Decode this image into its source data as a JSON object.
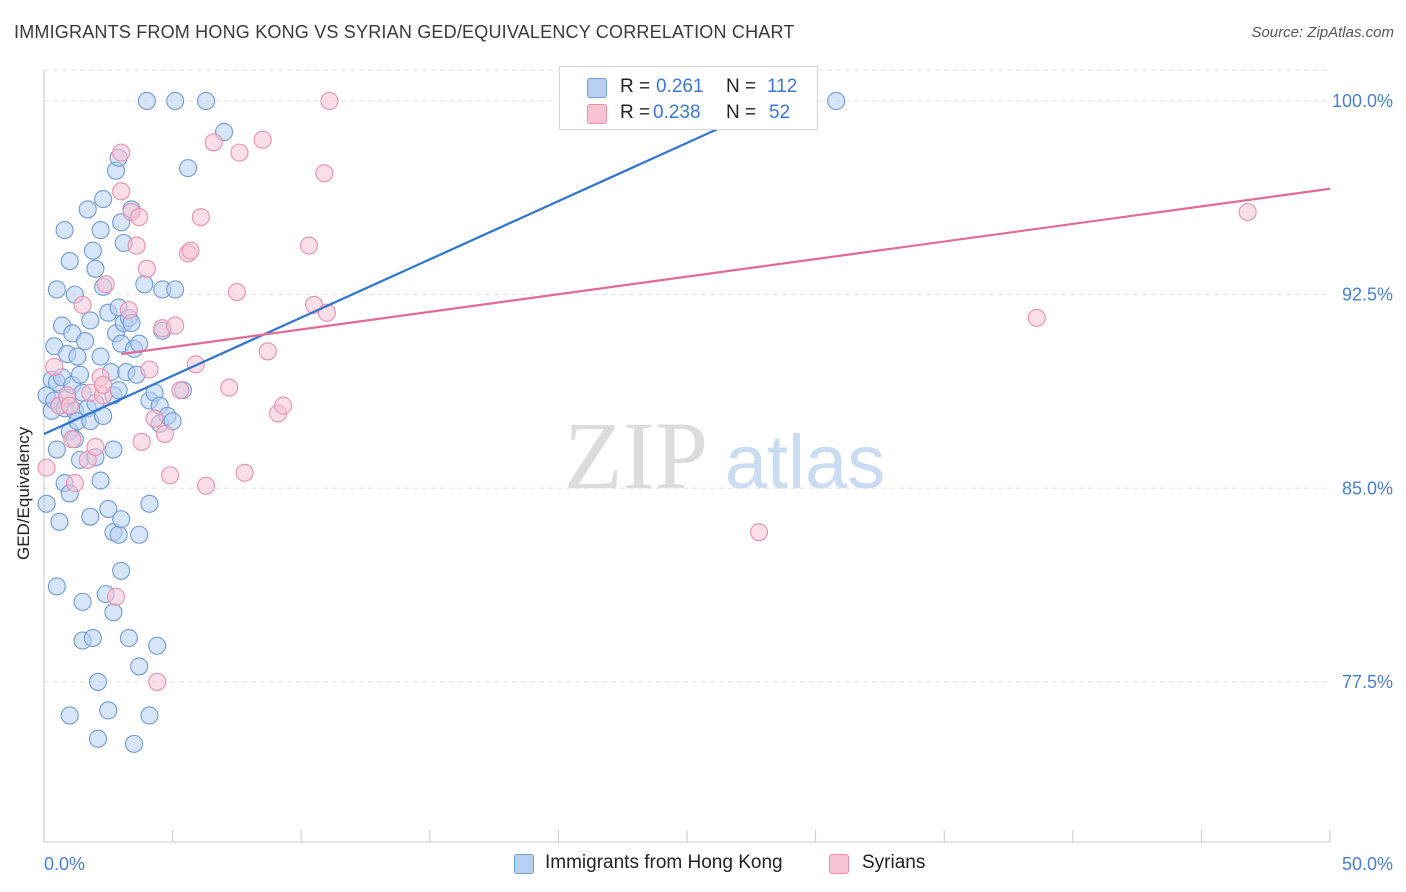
{
  "title": "IMMIGRANTS FROM HONG KONG VS SYRIAN GED/EQUIVALENCY CORRELATION CHART",
  "source": "Source: ZipAtlas.com",
  "watermark": {
    "zip": "ZIP",
    "atlas": "atlas"
  },
  "colors": {
    "blue_fill": "#b7d0f2",
    "blue_stroke": "#6f9ad6",
    "blue_line": "#2f74cf",
    "pink_fill": "#f7c3d3",
    "pink_stroke": "#e990ae",
    "pink_line": "#e36a96",
    "tick_text": "#4a7fd0",
    "grid": "#e2e2e2"
  },
  "legend": {
    "rows": [
      {
        "r_label": "R =",
        "r_value": "0.261",
        "n_label": "N =",
        "n_value": "112"
      },
      {
        "r_label": "R =",
        "r_value": "0.238",
        "n_label": "N =",
        "n_value": "52"
      }
    ]
  },
  "chart_data": {
    "type": "scatter",
    "title": "IMMIGRANTS FROM HONG KONG VS SYRIAN GED/EQUIVALENCY CORRELATION CHART",
    "xlabel": "",
    "ylabel": "GED/Equivalency",
    "xlim": [
      0,
      50
    ],
    "ylim": [
      71.3,
      101.2
    ],
    "x_tick_labels": [
      "0.0%",
      "50.0%"
    ],
    "y_ticks": [
      77.5,
      85.0,
      92.5,
      100.0
    ],
    "y_tick_labels": [
      "77.5%",
      "85.0%",
      "92.5%",
      "100.0%"
    ],
    "grid": true,
    "legend_position": "top-center",
    "series": [
      {
        "name": "Immigrants from Hong Kong",
        "color": "blue",
        "trend": {
          "x0": 0.0,
          "y0": 87.1,
          "x1": 28.6,
          "y1": 100.0
        },
        "points": [
          [
            0.1,
            88.6
          ],
          [
            0.1,
            84.4
          ],
          [
            0.3,
            89.2
          ],
          [
            0.3,
            88.0
          ],
          [
            0.4,
            90.5
          ],
          [
            0.4,
            88.4
          ],
          [
            0.5,
            92.7
          ],
          [
            0.5,
            89.1
          ],
          [
            0.5,
            81.2
          ],
          [
            0.5,
            86.5
          ],
          [
            0.6,
            88.2
          ],
          [
            0.6,
            83.7
          ],
          [
            0.7,
            91.3
          ],
          [
            0.7,
            89.3
          ],
          [
            0.8,
            88.1
          ],
          [
            0.8,
            95.0
          ],
          [
            0.8,
            85.2
          ],
          [
            0.9,
            90.2
          ],
          [
            0.9,
            88.5
          ],
          [
            1.0,
            93.8
          ],
          [
            1.0,
            87.2
          ],
          [
            1.0,
            84.8
          ],
          [
            1.0,
            76.2
          ],
          [
            1.1,
            91.0
          ],
          [
            1.1,
            89.0
          ],
          [
            1.2,
            88.0
          ],
          [
            1.2,
            92.5
          ],
          [
            1.2,
            86.9
          ],
          [
            1.3,
            90.1
          ],
          [
            1.3,
            87.6
          ],
          [
            1.4,
            89.4
          ],
          [
            1.4,
            86.1
          ],
          [
            1.5,
            88.7
          ],
          [
            1.5,
            80.6
          ],
          [
            1.5,
            79.1
          ],
          [
            1.6,
            90.7
          ],
          [
            1.7,
            88.1
          ],
          [
            1.7,
            95.8
          ],
          [
            1.8,
            91.5
          ],
          [
            1.8,
            87.6
          ],
          [
            1.8,
            83.9
          ],
          [
            1.9,
            94.2
          ],
          [
            1.9,
            79.2
          ],
          [
            2.0,
            93.5
          ],
          [
            2.0,
            88.3
          ],
          [
            2.0,
            86.2
          ],
          [
            2.1,
            77.5
          ],
          [
            2.1,
            75.3
          ],
          [
            2.2,
            95.0
          ],
          [
            2.2,
            90.1
          ],
          [
            2.2,
            85.3
          ],
          [
            2.3,
            96.2
          ],
          [
            2.3,
            92.8
          ],
          [
            2.3,
            87.8
          ],
          [
            2.4,
            80.9
          ],
          [
            2.5,
            91.8
          ],
          [
            2.5,
            84.2
          ],
          [
            2.5,
            76.4
          ],
          [
            2.6,
            89.5
          ],
          [
            2.7,
            88.6
          ],
          [
            2.7,
            86.5
          ],
          [
            2.7,
            83.3
          ],
          [
            2.7,
            80.2
          ],
          [
            2.8,
            91.0
          ],
          [
            2.8,
            97.3
          ],
          [
            2.9,
            97.8
          ],
          [
            2.9,
            92.0
          ],
          [
            2.9,
            88.8
          ],
          [
            2.9,
            83.2
          ],
          [
            3.0,
            95.3
          ],
          [
            3.0,
            90.6
          ],
          [
            3.0,
            83.8
          ],
          [
            3.0,
            81.8
          ],
          [
            3.1,
            94.5
          ],
          [
            3.1,
            91.4
          ],
          [
            3.2,
            89.5
          ],
          [
            3.3,
            91.6
          ],
          [
            3.3,
            79.2
          ],
          [
            3.4,
            95.8
          ],
          [
            3.4,
            91.4
          ],
          [
            3.5,
            90.4
          ],
          [
            3.5,
            75.1
          ],
          [
            3.6,
            89.4
          ],
          [
            3.7,
            90.6
          ],
          [
            3.7,
            83.2
          ],
          [
            3.7,
            78.1
          ],
          [
            3.9,
            92.9
          ],
          [
            4.0,
            100.0
          ],
          [
            4.1,
            88.4
          ],
          [
            4.1,
            84.4
          ],
          [
            4.1,
            76.2
          ],
          [
            4.3,
            88.7
          ],
          [
            4.4,
            78.9
          ],
          [
            4.5,
            88.2
          ],
          [
            4.5,
            87.5
          ],
          [
            4.6,
            92.7
          ],
          [
            4.6,
            91.1
          ],
          [
            4.8,
            87.8
          ],
          [
            5.0,
            87.6
          ],
          [
            5.1,
            92.7
          ],
          [
            5.1,
            100.0
          ],
          [
            5.4,
            88.8
          ],
          [
            5.6,
            97.4
          ],
          [
            6.3,
            100.0
          ],
          [
            7.0,
            98.8
          ],
          [
            30.8,
            100.0
          ]
        ]
      },
      {
        "name": "Syrians",
        "color": "pink",
        "trend": {
          "x0": 3.0,
          "y0": 90.2,
          "x1": 50.0,
          "y1": 96.6
        },
        "points": [
          [
            0.1,
            85.8
          ],
          [
            0.4,
            89.7
          ],
          [
            0.6,
            88.2
          ],
          [
            0.9,
            88.6
          ],
          [
            1.0,
            88.2
          ],
          [
            1.1,
            86.9
          ],
          [
            1.2,
            85.2
          ],
          [
            1.5,
            92.1
          ],
          [
            1.7,
            86.1
          ],
          [
            1.8,
            88.7
          ],
          [
            2.0,
            86.6
          ],
          [
            2.2,
            89.3
          ],
          [
            2.3,
            88.6
          ],
          [
            2.3,
            89.0
          ],
          [
            2.4,
            92.9
          ],
          [
            2.8,
            80.8
          ],
          [
            3.0,
            98.0
          ],
          [
            3.0,
            96.5
          ],
          [
            3.3,
            91.9
          ],
          [
            3.4,
            95.7
          ],
          [
            3.6,
            94.4
          ],
          [
            3.7,
            95.5
          ],
          [
            3.8,
            86.8
          ],
          [
            4.0,
            93.5
          ],
          [
            4.1,
            89.6
          ],
          [
            4.3,
            87.7
          ],
          [
            4.4,
            77.5
          ],
          [
            4.6,
            91.2
          ],
          [
            4.7,
            87.1
          ],
          [
            4.9,
            85.5
          ],
          [
            5.1,
            91.3
          ],
          [
            5.3,
            88.8
          ],
          [
            5.6,
            94.1
          ],
          [
            5.7,
            94.2
          ],
          [
            5.9,
            89.8
          ],
          [
            6.1,
            95.5
          ],
          [
            6.3,
            85.1
          ],
          [
            6.6,
            98.4
          ],
          [
            7.2,
            88.9
          ],
          [
            7.5,
            92.6
          ],
          [
            7.6,
            98.0
          ],
          [
            7.8,
            85.6
          ],
          [
            8.5,
            98.5
          ],
          [
            8.7,
            90.3
          ],
          [
            9.1,
            87.9
          ],
          [
            9.3,
            88.2
          ],
          [
            10.3,
            94.4
          ],
          [
            10.5,
            92.1
          ],
          [
            10.9,
            97.2
          ],
          [
            11.0,
            91.8
          ],
          [
            11.1,
            100.0
          ],
          [
            27.8,
            83.3
          ],
          [
            38.6,
            91.6
          ],
          [
            46.8,
            95.7
          ]
        ]
      }
    ]
  }
}
